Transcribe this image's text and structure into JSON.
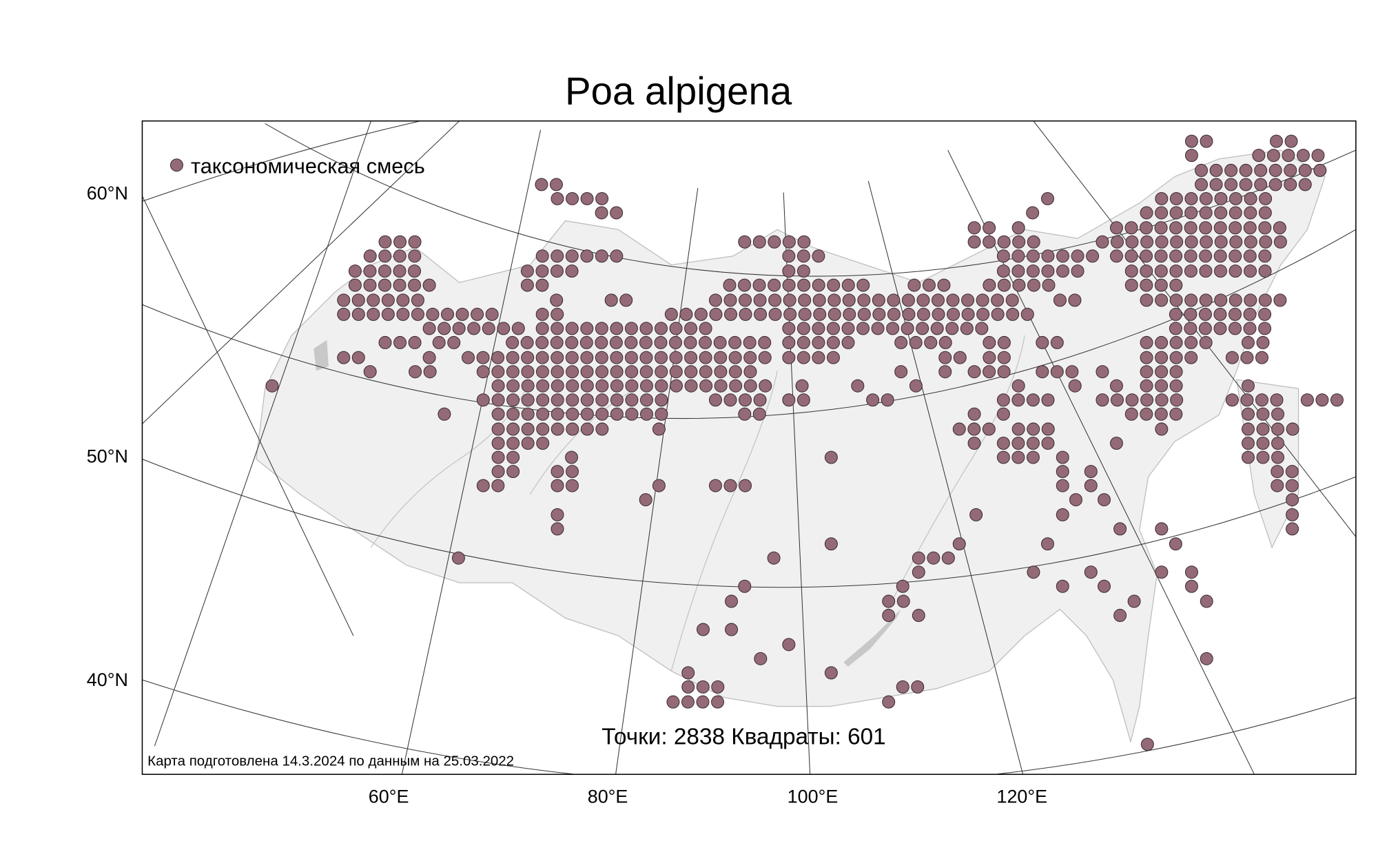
{
  "title": "Poa alpigena",
  "legend": {
    "items": [
      {
        "label": "таксономическая смесь",
        "color": "#946a77"
      }
    ]
  },
  "lat_labels": [
    "60°N",
    "50°N",
    "40°N"
  ],
  "lon_labels": [
    "60°E",
    "80°E",
    "100°E",
    "120°E"
  ],
  "stats": "Точки: 2838 Квадраты: 601",
  "footer": "Карта подготовлена 14.3.2024 по данным на 25.03.2022"
}
